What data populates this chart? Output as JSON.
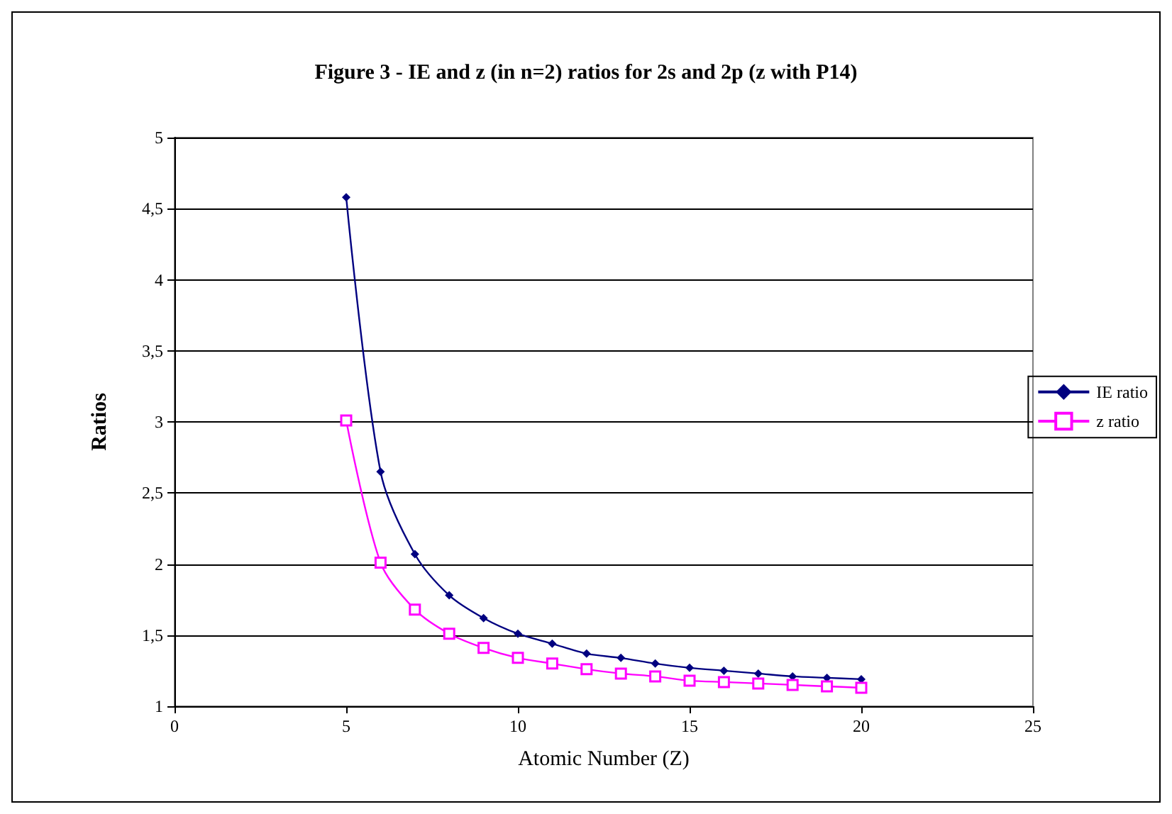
{
  "chart_data": {
    "type": "line",
    "title": "Figure 3 - IE and z (in n=2) ratios for 2s and 2p (z with P14)",
    "xlabel": "Atomic Number (Z)",
    "ylabel": "Ratios",
    "x": [
      5,
      6,
      7,
      8,
      9,
      10,
      11,
      12,
      13,
      14,
      15,
      16,
      17,
      18,
      19,
      20
    ],
    "series": [
      {
        "name": "IE ratio",
        "color": "#000080",
        "marker": "diamond",
        "values": [
          4.58,
          2.65,
          2.07,
          1.78,
          1.62,
          1.51,
          1.44,
          1.37,
          1.34,
          1.3,
          1.27,
          1.25,
          1.23,
          1.21,
          1.2,
          1.19
        ]
      },
      {
        "name": "z ratio",
        "color": "#ff00ff",
        "marker": "square",
        "values": [
          3.01,
          2.01,
          1.68,
          1.51,
          1.41,
          1.34,
          1.3,
          1.26,
          1.23,
          1.21,
          1.18,
          1.17,
          1.16,
          1.15,
          1.14,
          1.13
        ]
      }
    ],
    "xlim": [
      0,
      25
    ],
    "xticks": [
      0,
      5,
      10,
      15,
      20,
      25
    ],
    "ylim": [
      1,
      5
    ],
    "yticks": [
      1,
      {
        "value": 1.5,
        "label": "1,5"
      },
      2,
      {
        "value": 2.5,
        "label": "2,5"
      },
      3,
      {
        "value": 3.5,
        "label": "3,5"
      },
      4,
      {
        "value": 4.5,
        "label": "4,5"
      },
      5
    ],
    "grid": "y",
    "legend": "right",
    "line_style": "solid"
  }
}
